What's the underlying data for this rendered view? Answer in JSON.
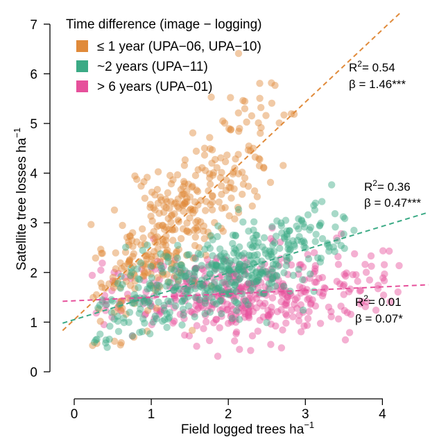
{
  "chart_data": {
    "type": "scatter",
    "xlabel": "Field logged trees ha",
    "xlabel_sup": "−1",
    "ylabel": "Satellite tree losses ha",
    "ylabel_sup": "−1",
    "xlim": [
      -0.15,
      4.6
    ],
    "ylim": [
      -0.15,
      7.25
    ],
    "x_ticks": [
      0,
      1,
      2,
      3,
      4
    ],
    "y_ticks": [
      0,
      1,
      2,
      3,
      4,
      5,
      6,
      7
    ],
    "grid": false,
    "legend": {
      "title": "Time difference (image − logging)",
      "placement": "top-left"
    },
    "series": [
      {
        "name": "≤ 1 year (UPA−06, UPA−10)",
        "color": "#E08A3A",
        "trend": {
          "intercept": 1.05,
          "slope": 1.46
        },
        "stats": {
          "r2": "R",
          "r2_sup": "2",
          "r2_value": "= 0.54",
          "beta": "β = 1.46***"
        },
        "cloud": {
          "n": 360,
          "x_range": [
            0.1,
            2.9
          ],
          "x_mode": 1.1,
          "noise": 0.65,
          "seed": 11,
          "y_max": 6.9
        }
      },
      {
        "name": "~2 years (UPA−11)",
        "color": "#3BAA85",
        "trend": {
          "intercept": 1.05,
          "slope": 0.47
        },
        "stats": {
          "r2": "R",
          "r2_sup": "2",
          "r2_value": "= 0.36",
          "beta": "β = 0.47***"
        },
        "cloud": {
          "n": 430,
          "x_range": [
            0.05,
            3.7
          ],
          "x_mode": 2.1,
          "noise": 0.42,
          "seed": 23,
          "y_max": 3.95
        }
      },
      {
        "name": "> 6 years (UPA−01)",
        "color": "#E6509B",
        "trend": {
          "intercept": 1.43,
          "slope": 0.07
        },
        "stats": {
          "r2": "R",
          "r2_sup": "2",
          "r2_value": "= 0.01",
          "beta": "β = 0.07*"
        },
        "cloud": {
          "n": 430,
          "x_range": [
            0.1,
            4.3
          ],
          "x_mode": 2.1,
          "noise": 0.42,
          "seed": 37,
          "y_max": 3.3
        }
      }
    ]
  }
}
